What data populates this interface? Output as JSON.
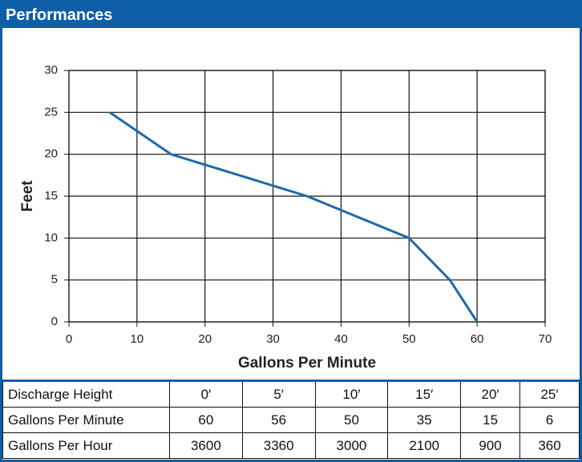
{
  "chart_data": {
    "type": "line",
    "title": "Performances",
    "x": [
      6,
      15,
      35,
      50,
      56,
      60
    ],
    "values": [
      25,
      20,
      15,
      10,
      5,
      0
    ],
    "color": "#1d6aa5",
    "xlabel": "Gallons Per Minute",
    "ylabel": "Feet",
    "xlim": [
      0,
      70
    ],
    "xticks": [
      0,
      10,
      20,
      30,
      40,
      50,
      60,
      70
    ],
    "ylim": [
      0,
      30
    ],
    "yticks": [
      0,
      5,
      10,
      15,
      20,
      25,
      30
    ],
    "grid": true
  },
  "table": {
    "rows": [
      [
        "Discharge Height",
        "0′",
        "5′",
        "10′",
        "15′",
        "20′",
        "25′"
      ],
      [
        "Gallons Per Minute",
        60,
        56,
        50,
        35,
        15,
        6
      ],
      [
        "Gallons Per Hour",
        3600,
        3360,
        3000,
        2100,
        900,
        360
      ]
    ]
  }
}
